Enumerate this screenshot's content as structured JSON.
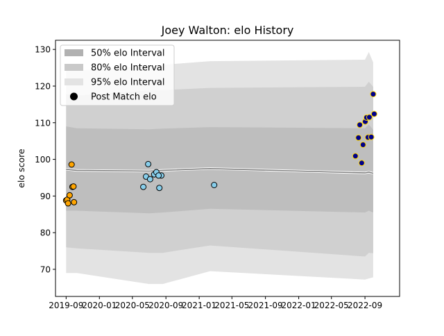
{
  "chart_data": {
    "type": "scatter",
    "title": "Joey Walton: elo History",
    "xlabel": "",
    "ylabel": "elo score",
    "ylim": [
      62.6,
      132.5
    ],
    "xlim": [
      "2019-07-24",
      "2023-01-06"
    ],
    "grid": false,
    "legend_position": "top-left",
    "x_ticks": [
      "2019-09-01",
      "2020-01-01",
      "2020-05-01",
      "2020-09-01",
      "2021-01-01",
      "2021-05-01",
      "2021-09-01",
      "2022-01-01",
      "2022-05-01",
      "2022-09-01"
    ],
    "x_tick_labels": [
      "2019-09",
      "2020-01",
      "2020-05",
      "2020-09",
      "2021-01",
      "2021-05",
      "2021-09",
      "2022-01",
      "2022-05",
      "2022-09"
    ],
    "y_ticks": [
      70,
      80,
      90,
      100,
      110,
      120,
      130
    ],
    "y_tick_labels": [
      "70",
      "80",
      "90",
      "100",
      "110",
      "120",
      "130"
    ],
    "bands": [
      {
        "name": "95% elo Interval",
        "color": "#e3e3e3",
        "x": [
          "2019-09-01",
          "2019-10-10",
          "2020-07-01",
          "2020-08-20",
          "2021-02-10",
          "2022-09-01",
          "2022-09-15",
          "2022-10-01"
        ],
        "upper": [
          124.8,
          124.2,
          125.5,
          125.8,
          126.8,
          127.2,
          129.3,
          126.5
        ],
        "lower": [
          69.0,
          69.0,
          66.0,
          66.0,
          69.5,
          67.2,
          67.5,
          67.8
        ]
      },
      {
        "name": "80% elo Interval",
        "color": "#d0d0d0",
        "x": [
          "2019-09-01",
          "2019-10-10",
          "2020-07-01",
          "2020-08-20",
          "2021-02-10",
          "2022-09-01",
          "2022-09-15",
          "2022-10-01"
        ],
        "upper": [
          117.8,
          117.4,
          118.8,
          118.9,
          119.5,
          119.8,
          121.2,
          119.8
        ],
        "lower": [
          76.0,
          75.7,
          74.5,
          74.5,
          76.5,
          73.5,
          74.5,
          74.4
        ]
      },
      {
        "name": "50% elo Interval",
        "color": "#bebebe",
        "x": [
          "2019-09-01",
          "2019-10-10",
          "2020-07-01",
          "2020-08-20",
          "2021-02-10",
          "2022-09-01",
          "2022-09-15",
          "2022-10-01"
        ],
        "upper": [
          109.0,
          108.5,
          108.2,
          108.4,
          108.8,
          108.5,
          109.5,
          108.1
        ],
        "lower": [
          86.0,
          86.0,
          85.3,
          85.5,
          86.5,
          85.5,
          86.0,
          85.5
        ]
      }
    ],
    "mean_line": {
      "color": "#808080",
      "x": [
        "2019-09-01",
        "2019-10-10",
        "2020-07-01",
        "2020-08-20",
        "2021-02-10",
        "2022-09-01",
        "2022-09-15",
        "2022-10-01"
      ],
      "y": [
        97.3,
        97.0,
        96.8,
        97.0,
        97.5,
        96.3,
        96.5,
        96.2
      ]
    },
    "series": [
      {
        "name": "",
        "color": "#ffa500",
        "edge": "#000000",
        "x": [
          "2019-09-01",
          "2019-09-05",
          "2019-09-08",
          "2019-09-14",
          "2019-09-21",
          "2019-09-24",
          "2019-09-30",
          "2019-09-28"
        ],
        "y": [
          88.8,
          89.0,
          88.0,
          90.2,
          98.6,
          92.5,
          88.3,
          92.6
        ]
      },
      {
        "name": "",
        "color": "#87ceeb",
        "edge": "#000000",
        "x": [
          "2020-06-10",
          "2020-06-20",
          "2020-06-28",
          "2020-07-05",
          "2020-07-20",
          "2020-07-28",
          "2020-08-08",
          "2020-08-15",
          "2020-08-05",
          "2021-02-25"
        ],
        "y": [
          92.5,
          95.3,
          98.7,
          94.6,
          95.9,
          96.5,
          92.2,
          95.6,
          95.6,
          93.0
        ]
      },
      {
        "name": "",
        "color": "#00008b",
        "edge": "#ffd700",
        "x": [
          "2022-07-28",
          "2022-08-08",
          "2022-08-13",
          "2022-08-20",
          "2022-08-25",
          "2022-09-02",
          "2022-09-07",
          "2022-09-12",
          "2022-09-17",
          "2022-09-24",
          "2022-10-01",
          "2022-10-05"
        ],
        "y": [
          100.9,
          105.9,
          109.4,
          99.0,
          104.0,
          110.3,
          111.4,
          106.0,
          111.5,
          106.1,
          117.8,
          112.4
        ]
      }
    ],
    "legend": [
      {
        "label": "50% elo Interval",
        "kind": "patch",
        "color": "#b1b1b1"
      },
      {
        "label": "80% elo Interval",
        "kind": "patch",
        "color": "#c9c9c9"
      },
      {
        "label": "95% elo Interval",
        "kind": "patch",
        "color": "#e3e3e3"
      },
      {
        "label": "Post Match elo",
        "kind": "marker",
        "color": "#000000"
      }
    ]
  }
}
